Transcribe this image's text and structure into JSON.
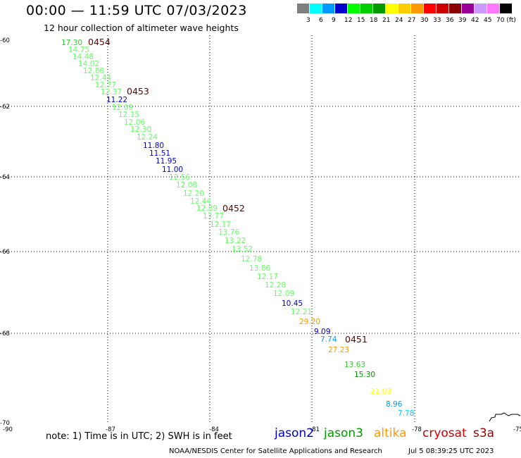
{
  "header": {
    "title": "00:00 — 11:59 UTC 07/03/2023",
    "subtitle": "12 hour collection of altimeter wave heights"
  },
  "legend": {
    "colors": [
      "#7f7f7f",
      "#00ffff",
      "#0099ff",
      "#0000cc",
      "#00ff00",
      "#00cc00",
      "#009900",
      "#ffff00",
      "#ffcc00",
      "#ff9900",
      "#ff0000",
      "#cc0000",
      "#880000",
      "#990099",
      "#cc99ff",
      "#ff77ff",
      "#000000"
    ],
    "labels": [
      "3",
      "6",
      "9",
      "12",
      "15",
      "18",
      "21",
      "24",
      "27",
      "30",
      "33",
      "36",
      "39",
      "42",
      "45",
      "70 (ft)"
    ]
  },
  "map": {
    "lon_ticks": [
      "-90",
      "-87",
      "-84",
      "-81",
      "-78",
      "-75"
    ],
    "lat_ticks": [
      "-60",
      "-62",
      "-64",
      "-66",
      "-68",
      "-70"
    ],
    "passes": [
      "0454",
      "0453",
      "0452",
      "0451"
    ],
    "points": [
      {
        "t": "17.30",
        "c": "#33cc33"
      },
      {
        "t": "14.75",
        "c": "#66ff66"
      },
      {
        "t": "14.48",
        "c": "#66ff66"
      },
      {
        "t": "14.02",
        "c": "#66ff66"
      },
      {
        "t": "12.86",
        "c": "#66ff66"
      },
      {
        "t": "12.44",
        "c": "#66ff66"
      },
      {
        "t": "12.77",
        "c": "#66ff66"
      },
      {
        "t": "12.37",
        "c": "#66ff66"
      },
      {
        "t": "11.22",
        "c": "#0000cc"
      },
      {
        "t": "12.09",
        "c": "#66ff66"
      },
      {
        "t": "12.15",
        "c": "#66ff66"
      },
      {
        "t": "12.06",
        "c": "#66ff66"
      },
      {
        "t": "12.30",
        "c": "#66ff66"
      },
      {
        "t": "12.24",
        "c": "#66ff66"
      },
      {
        "t": "11.80",
        "c": "#0000cc"
      },
      {
        "t": "11.51",
        "c": "#0000cc"
      },
      {
        "t": "11.95",
        "c": "#0000cc"
      },
      {
        "t": "11.00",
        "c": "#0000cc"
      },
      {
        "t": "12.56",
        "c": "#66ff66"
      },
      {
        "t": "12.08",
        "c": "#66ff66"
      },
      {
        "t": "12.20",
        "c": "#66ff66"
      },
      {
        "t": "12.44",
        "c": "#66ff66"
      },
      {
        "t": "12.89",
        "c": "#66ff66"
      },
      {
        "t": "13.77",
        "c": "#66ff66"
      },
      {
        "t": "12.17",
        "c": "#66ff66"
      },
      {
        "t": "13.76",
        "c": "#66ff66"
      },
      {
        "t": "13.22",
        "c": "#66ff66"
      },
      {
        "t": "13.52",
        "c": "#66ff66"
      },
      {
        "t": "12.78",
        "c": "#66ff66"
      },
      {
        "t": "13.86",
        "c": "#66ff66"
      },
      {
        "t": "12.17",
        "c": "#66ff66"
      },
      {
        "t": "12.28",
        "c": "#66ff66"
      },
      {
        "t": "12.09",
        "c": "#66ff66"
      },
      {
        "t": "10.45",
        "c": "#0000cc"
      },
      {
        "t": "12.21",
        "c": "#66ff66"
      },
      {
        "t": "29.20",
        "c": "#ff9900"
      },
      {
        "t": "9.09",
        "c": "#0000cc"
      },
      {
        "t": "7.74",
        "c": "#0099ff"
      },
      {
        "t": "27.23",
        "c": "#ff9900"
      },
      {
        "t": "13.63",
        "c": "#33cc33"
      },
      {
        "t": "15.30",
        "c": "#009900"
      },
      {
        "t": "21.03",
        "c": "#ffff00"
      },
      {
        "t": "8.96",
        "c": "#0099ff"
      },
      {
        "t": "7.78",
        "c": "#00ccff"
      }
    ]
  },
  "footer": {
    "note": "note:  1) Time is in UTC;  2) SWH is in feet",
    "satellites": [
      {
        "name": "jason2",
        "color": "#0000cc"
      },
      {
        "name": "jason3",
        "color": "#009900"
      },
      {
        "name": "altika",
        "color": "#ff9900"
      },
      {
        "name": "cryosat",
        "color": "#cc0000"
      },
      {
        "name": "s3a",
        "color": "#990000"
      }
    ],
    "credit": "NOAA/NESDIS Center for Satellite Applications and Research",
    "timestamp": "Jul  5 08:39:25 UTC 2023"
  }
}
